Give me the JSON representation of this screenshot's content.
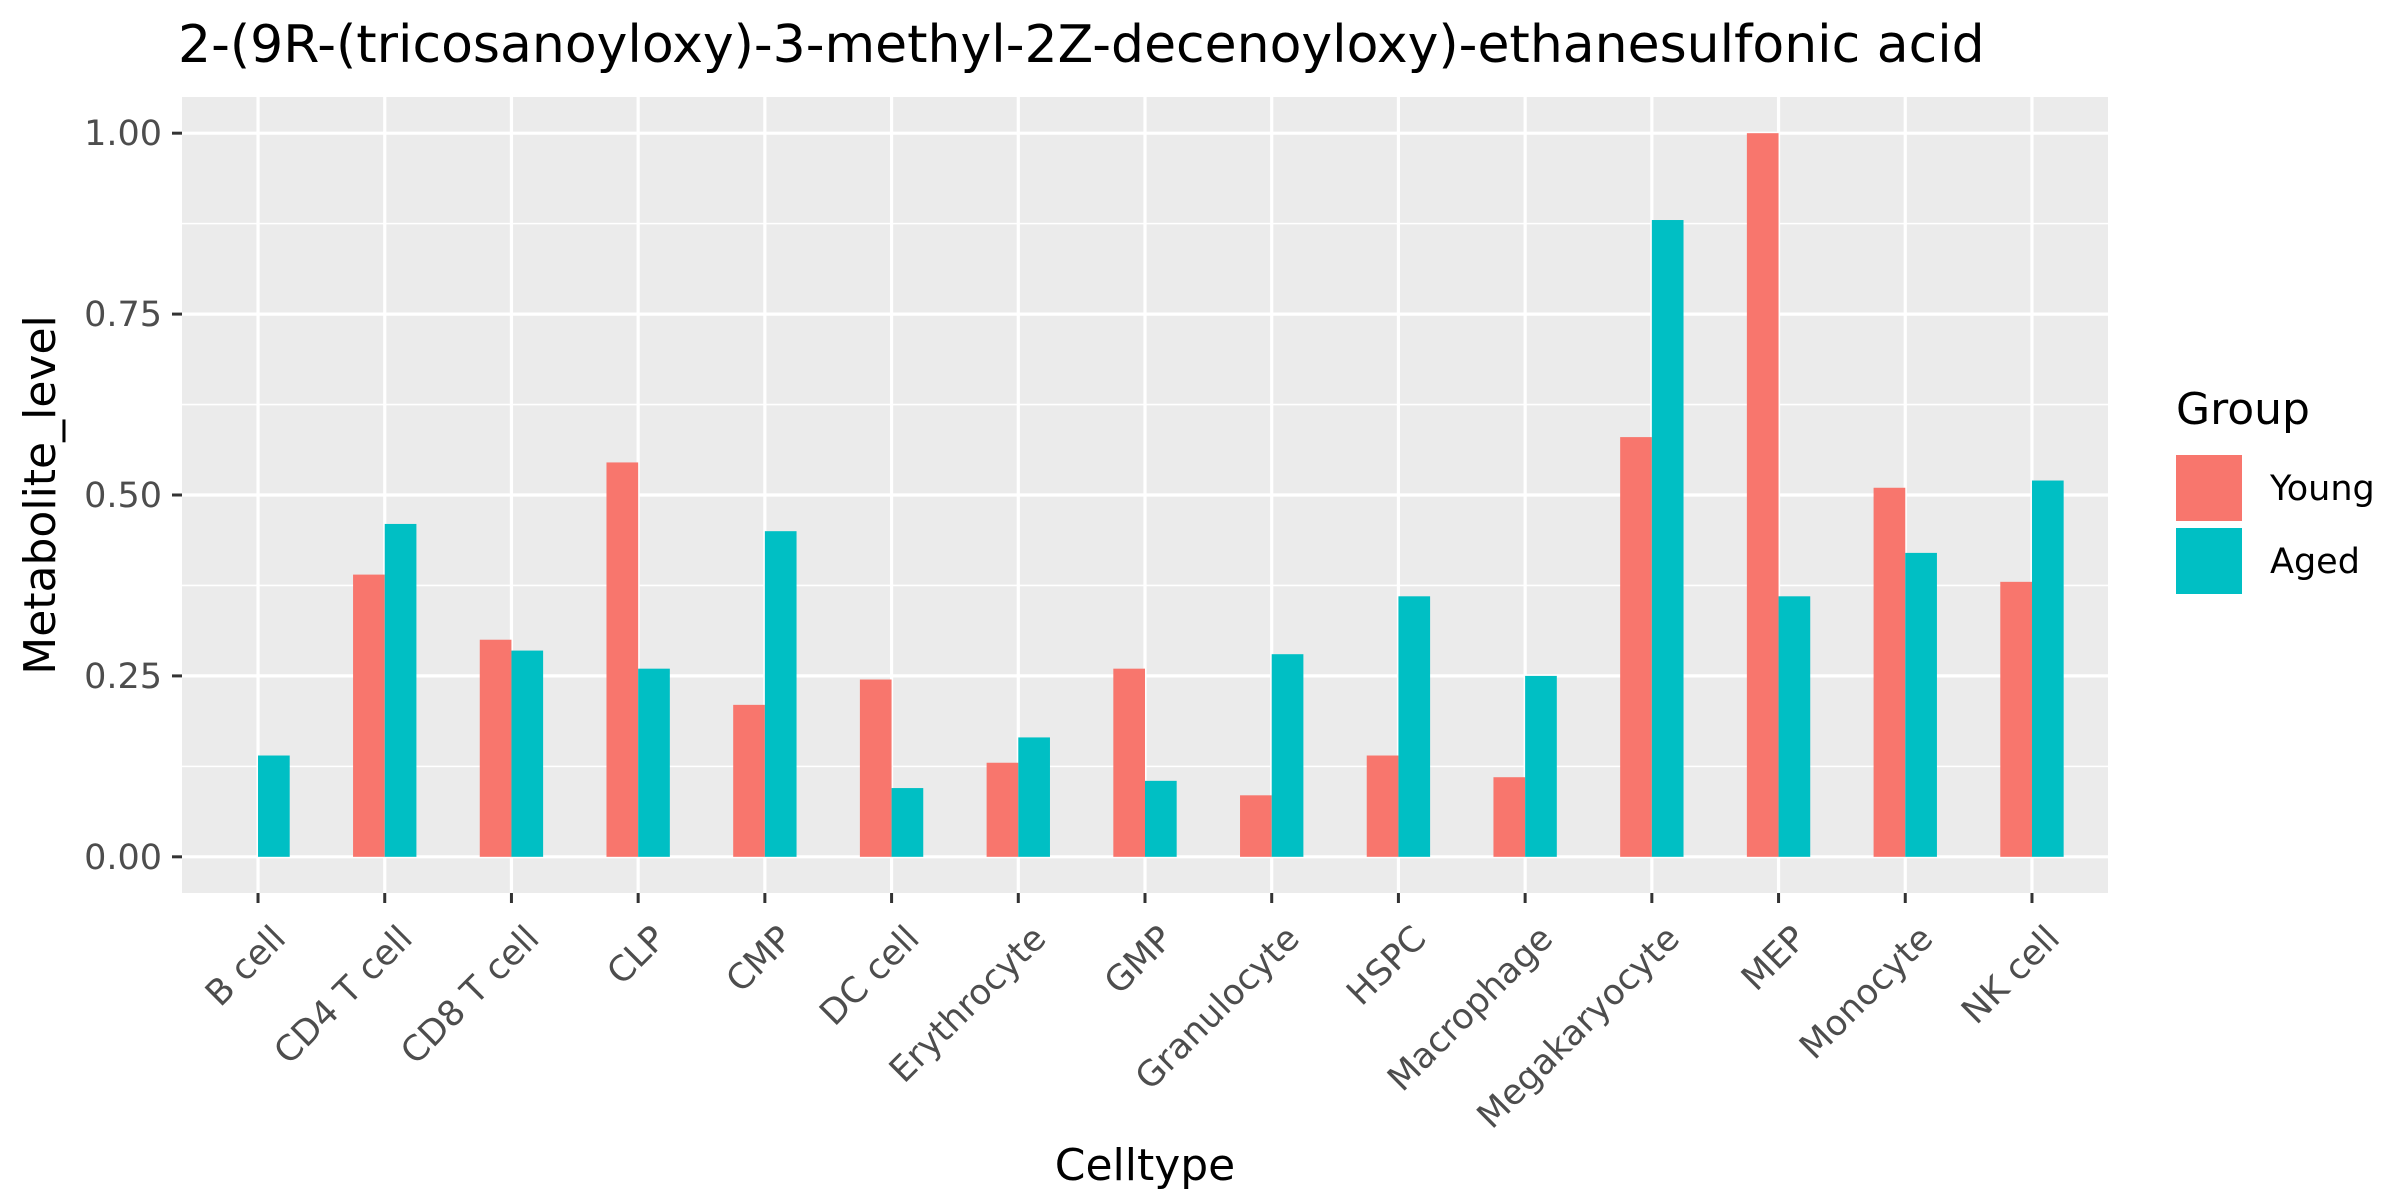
{
  "chart_data": {
    "type": "bar",
    "title": "2-(9R-(tricosanoyloxy)-3-methyl-2Z-decenoyloxy)-ethanesulfonic acid",
    "xlabel": "Celltype",
    "ylabel": "Metabolite_level",
    "categories": [
      "B cell",
      "CD4 T cell",
      "CD8 T cell",
      "CLP",
      "CMP",
      "DC cell",
      "Erythrocyte",
      "GMP",
      "Granulocyte",
      "HSPC",
      "Macrophage",
      "Megakaryocyte",
      "MEP",
      "Monocyte",
      "NK cell"
    ],
    "series": [
      {
        "name": "Young",
        "color": "#F8766D",
        "values": [
          0.0,
          0.39,
          0.3,
          0.545,
          0.21,
          0.245,
          0.13,
          0.26,
          0.085,
          0.14,
          0.11,
          0.58,
          1.0,
          0.51,
          0.38
        ]
      },
      {
        "name": "Aged",
        "color": "#00BFC4",
        "values": [
          0.14,
          0.46,
          0.285,
          0.26,
          0.45,
          0.095,
          0.165,
          0.105,
          0.28,
          0.36,
          0.25,
          0.88,
          0.36,
          0.42,
          0.52
        ]
      }
    ],
    "ylim": [
      -0.05,
      1.05
    ],
    "yticks": [
      0.0,
      0.25,
      0.5,
      0.75,
      1.0
    ],
    "ytick_labels": [
      "0.00",
      "0.25",
      "0.50",
      "0.75",
      "1.00"
    ],
    "legend": {
      "title": "Group",
      "position": "right"
    },
    "grid": true,
    "panel_background": "#EBEBEB"
  }
}
